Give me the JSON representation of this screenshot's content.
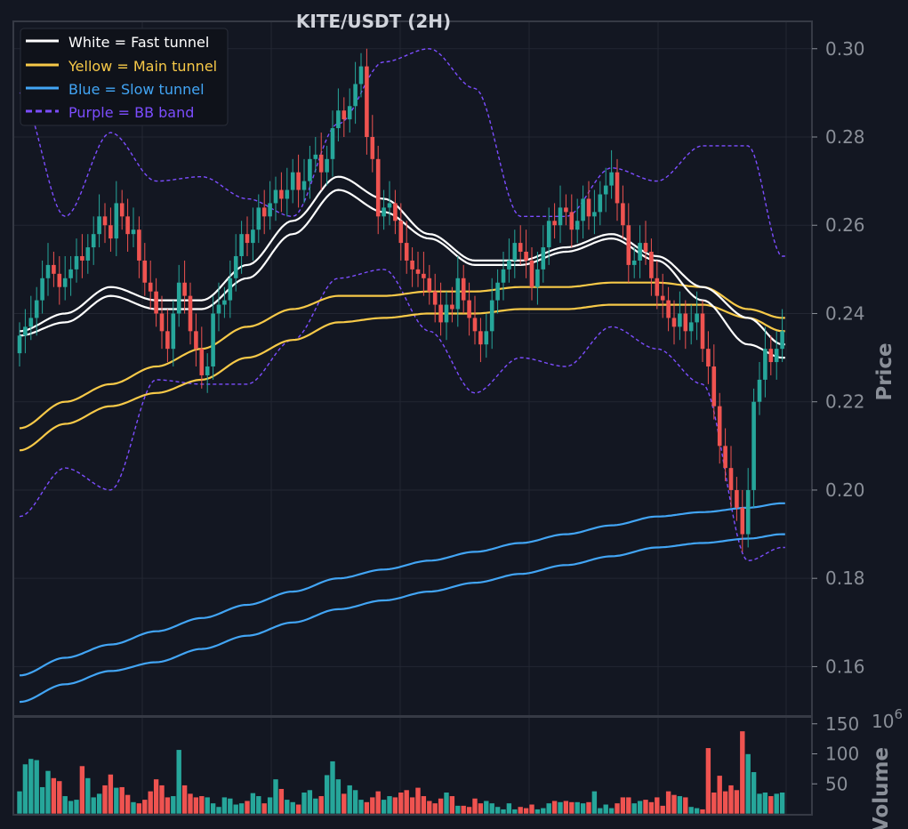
{
  "chart_data": {
    "type": "candlestick",
    "title": "KITE/USDT (2H)",
    "price_axis": {
      "label": "Price",
      "ylim": [
        0.149,
        0.306
      ],
      "ticks": [
        "0.16",
        "0.18",
        "0.20",
        "0.22",
        "0.24",
        "0.26",
        "0.28",
        "0.30"
      ],
      "tick_values": [
        0.16,
        0.18,
        0.2,
        0.22,
        0.24,
        0.26,
        0.28,
        0.3
      ]
    },
    "volume_axis": {
      "label": "Volume",
      "multiplier": "10^6",
      "multiplier_base": "10",
      "multiplier_exp": "6",
      "ylim": [
        0,
        160
      ],
      "ticks": [
        "50",
        "100",
        "150"
      ],
      "tick_values": [
        50,
        100,
        150
      ]
    },
    "grid": true,
    "legend_position": "top-left",
    "legend": [
      {
        "label": "White = Fast tunnel",
        "color": "#ffffff",
        "style": "solid"
      },
      {
        "label": "Yellow = Main tunnel",
        "color": "#f7c948",
        "style": "solid"
      },
      {
        "label": "Blue = Slow tunnel",
        "color": "#42a5f5",
        "style": "solid"
      },
      {
        "label": "Purple = BB band",
        "color": "#7c4dff",
        "style": "dashed"
      }
    ],
    "colors": {
      "up": "#26a69a",
      "down": "#ef5350",
      "fast": "#ffffff",
      "main": "#f7c948",
      "slow": "#42a5f5",
      "bb": "#7c4dff"
    },
    "candles": {
      "close": [
        0.235,
        0.237,
        0.239,
        0.243,
        0.248,
        0.251,
        0.249,
        0.246,
        0.248,
        0.25,
        0.253,
        0.252,
        0.255,
        0.258,
        0.262,
        0.26,
        0.257,
        0.265,
        0.262,
        0.258,
        0.259,
        0.252,
        0.247,
        0.245,
        0.24,
        0.236,
        0.232,
        0.24,
        0.247,
        0.244,
        0.236,
        0.232,
        0.226,
        0.228,
        0.24,
        0.242,
        0.243,
        0.248,
        0.253,
        0.258,
        0.256,
        0.259,
        0.264,
        0.262,
        0.265,
        0.268,
        0.266,
        0.268,
        0.272,
        0.268,
        0.27,
        0.275,
        0.276,
        0.272,
        0.275,
        0.282,
        0.286,
        0.284,
        0.287,
        0.292,
        0.296,
        0.28,
        0.275,
        0.262,
        0.264,
        0.265,
        0.261,
        0.256,
        0.252,
        0.25,
        0.249,
        0.248,
        0.245,
        0.242,
        0.238,
        0.242,
        0.241,
        0.248,
        0.243,
        0.239,
        0.236,
        0.233,
        0.236,
        0.243,
        0.247,
        0.25,
        0.252,
        0.256,
        0.254,
        0.252,
        0.246,
        0.25,
        0.255,
        0.261,
        0.26,
        0.264,
        0.263,
        0.259,
        0.261,
        0.266,
        0.262,
        0.263,
        0.267,
        0.269,
        0.272,
        0.265,
        0.26,
        0.251,
        0.252,
        0.256,
        0.254,
        0.248,
        0.244,
        0.243,
        0.239,
        0.237,
        0.24,
        0.236,
        0.238,
        0.24,
        0.232,
        0.228,
        0.219,
        0.21,
        0.205,
        0.2,
        0.196,
        0.19,
        0.2,
        0.22,
        0.225,
        0.232,
        0.229,
        0.232,
        0.236
      ],
      "volume": [
        38,
        83,
        92,
        90,
        45,
        72,
        60,
        55,
        30,
        22,
        24,
        80,
        60,
        28,
        34,
        48,
        66,
        44,
        45,
        32,
        20,
        18,
        24,
        38,
        58,
        48,
        28,
        30,
        107,
        48,
        34,
        28,
        30,
        28,
        18,
        12,
        28,
        26,
        16,
        18,
        22,
        35,
        30,
        18,
        28,
        58,
        42,
        24,
        20,
        16,
        36,
        40,
        26,
        30,
        65,
        88,
        58,
        34,
        48,
        40,
        24,
        20,
        28,
        38,
        24,
        30,
        28,
        36,
        40,
        28,
        44,
        30,
        22,
        18,
        26,
        36,
        30,
        14,
        14,
        12,
        26,
        18,
        22,
        18,
        12,
        8,
        18,
        8,
        12,
        10,
        16,
        8,
        10,
        18,
        22,
        20,
        22,
        20,
        20,
        18,
        20,
        38,
        10,
        16,
        10,
        18,
        28,
        28,
        18,
        22,
        24,
        20,
        28,
        14,
        38,
        32,
        30,
        28,
        12,
        10,
        8,
        110,
        36,
        64,
        38,
        48,
        40,
        138,
        100,
        70,
        34,
        36,
        30,
        34,
        36
      ]
    },
    "bands": {
      "x_index": [
        0,
        8,
        16,
        24,
        32,
        40,
        48,
        56,
        64,
        72,
        80,
        88,
        96,
        104,
        112,
        120,
        128,
        134
      ],
      "fast_upper": [
        0.236,
        0.24,
        0.246,
        0.243,
        0.243,
        0.251,
        0.261,
        0.271,
        0.266,
        0.258,
        0.252,
        0.252,
        0.255,
        0.258,
        0.253,
        0.246,
        0.239,
        0.233
      ],
      "fast_lower": [
        0.235,
        0.238,
        0.244,
        0.241,
        0.241,
        0.248,
        0.258,
        0.268,
        0.263,
        0.257,
        0.251,
        0.251,
        0.254,
        0.257,
        0.252,
        0.243,
        0.233,
        0.23
      ],
      "main_upper": [
        0.214,
        0.22,
        0.224,
        0.228,
        0.232,
        0.237,
        0.241,
        0.244,
        0.244,
        0.245,
        0.245,
        0.246,
        0.246,
        0.247,
        0.247,
        0.246,
        0.241,
        0.239
      ],
      "main_lower": [
        0.209,
        0.215,
        0.219,
        0.222,
        0.225,
        0.23,
        0.234,
        0.238,
        0.239,
        0.24,
        0.24,
        0.241,
        0.241,
        0.242,
        0.242,
        0.242,
        0.239,
        0.236
      ],
      "slow_upper": [
        0.158,
        0.162,
        0.165,
        0.168,
        0.171,
        0.174,
        0.177,
        0.18,
        0.182,
        0.184,
        0.186,
        0.188,
        0.19,
        0.192,
        0.194,
        0.195,
        0.196,
        0.197
      ],
      "slow_lower": [
        0.152,
        0.156,
        0.159,
        0.161,
        0.164,
        0.167,
        0.17,
        0.173,
        0.175,
        0.177,
        0.179,
        0.181,
        0.183,
        0.185,
        0.187,
        0.188,
        0.189,
        0.19
      ],
      "bb_upper": [
        0.29,
        0.262,
        0.281,
        0.27,
        0.271,
        0.266,
        0.262,
        0.283,
        0.297,
        0.3,
        0.291,
        0.262,
        0.262,
        0.273,
        0.27,
        0.278,
        0.278,
        0.253
      ],
      "bb_lower": [
        0.194,
        0.205,
        0.2,
        0.225,
        0.224,
        0.224,
        0.234,
        0.248,
        0.25,
        0.236,
        0.222,
        0.23,
        0.228,
        0.237,
        0.232,
        0.224,
        0.184,
        0.187
      ]
    }
  }
}
